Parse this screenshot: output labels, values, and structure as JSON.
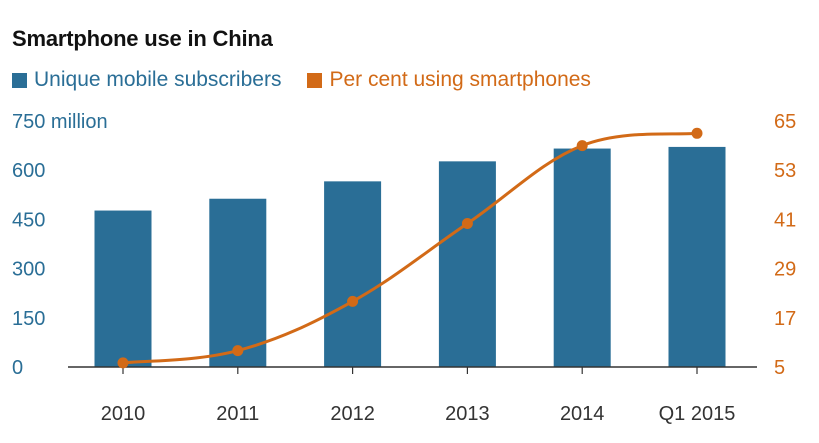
{
  "title": "Smartphone use in China",
  "colors": {
    "bar": "#2a6e96",
    "line": "#d26a17",
    "axis": "#333333",
    "grid": "#dddddd"
  },
  "chart_data": {
    "type": "bar",
    "title": "Smartphone use in China",
    "categories": [
      "2010",
      "2011",
      "2012",
      "2013",
      "2014",
      "Q1 2015"
    ],
    "series": [
      {
        "name": "Unique mobile subscribers",
        "type": "bar",
        "axis": "left",
        "values": [
          477,
          513,
          566,
          627,
          666,
          671
        ]
      },
      {
        "name": "Per cent using smartphones",
        "type": "line",
        "axis": "right",
        "values": [
          6,
          9,
          21,
          40,
          59,
          62
        ]
      }
    ],
    "y_left": {
      "ticks": [
        0,
        150,
        300,
        450,
        600,
        750
      ],
      "tick_labels": [
        "0",
        "150",
        "300",
        "450",
        "600",
        "750 million"
      ],
      "ylim": [
        0,
        750
      ]
    },
    "y_right": {
      "ticks": [
        5,
        17,
        29,
        41,
        53,
        65
      ],
      "tick_labels": [
        "5",
        "17",
        "29",
        "41",
        "53",
        "65"
      ],
      "ylim": [
        5,
        65
      ]
    },
    "grid": false,
    "legend": "top-left"
  }
}
